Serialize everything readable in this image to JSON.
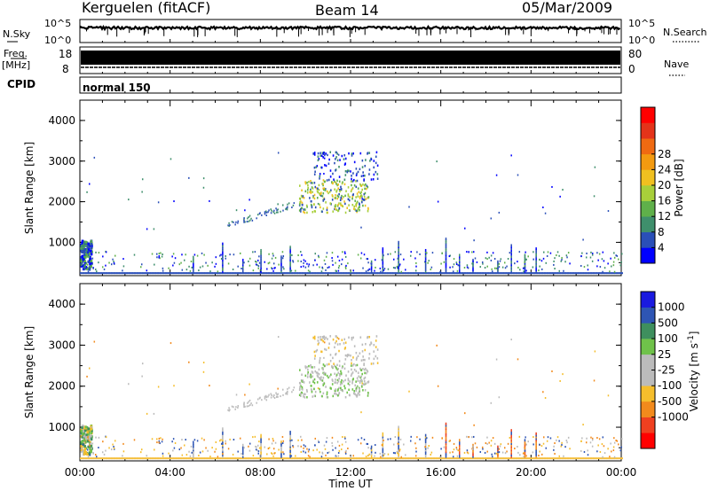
{
  "header": {
    "station": "Kerguelen (fitACF)",
    "beam": "Beam 14",
    "date": "05/Mar/2009"
  },
  "sky_panel": {
    "left_label": "N.Sky",
    "right_label": "N.Search",
    "left_ticks": [
      "10^5",
      "10^0"
    ],
    "right_ticks": [
      "10^5",
      "10^0"
    ]
  },
  "freq_panel": {
    "left_label_1": "Freq.",
    "left_label_2": "[MHz]",
    "cpid_label": "CPID",
    "right_label": "Nave",
    "left_ticks": [
      "18",
      "8"
    ],
    "right_ticks": [
      "80",
      "0"
    ]
  },
  "cpid_panel": {
    "text": "normal 150"
  },
  "colors": {
    "power_scale": [
      "#0000ff",
      "#2a4fb8",
      "#3f8f6c",
      "#5fb04a",
      "#a8cf3a",
      "#f0c020",
      "#f39a10",
      "#ef6a12",
      "#e4331a",
      "#ff0000"
    ],
    "velocity_scale": [
      "#ff0000",
      "#ef4020",
      "#f28a1c",
      "#f5be2c",
      "#bbbbbb",
      "#bbbbbb",
      "#6fc24a",
      "#3e8f5e",
      "#2e55b4",
      "#1a1ae0"
    ]
  },
  "chart_data": [
    {
      "type": "heatmap",
      "name": "power",
      "ylabel": "Slant Range [km]",
      "ylim": [
        180,
        4500
      ],
      "yticks": [
        "1000",
        "2000",
        "3000",
        "4000"
      ],
      "xlim": [
        0,
        24
      ],
      "colorbar": {
        "label": "Power [dB]",
        "range": [
          0,
          32
        ],
        "ticks": [
          "4",
          "8",
          "12",
          "16",
          "20",
          "24",
          "28"
        ]
      },
      "regions": [
        {
          "t": [
            0.0,
            0.5
          ],
          "r": [
            300,
            1000
          ],
          "level": "strong"
        },
        {
          "t": [
            9.7,
            12.8
          ],
          "r": [
            1700,
            2500
          ],
          "level": "medium"
        },
        {
          "t": [
            10.3,
            13.2
          ],
          "r": [
            2500,
            3200
          ],
          "level": "weak"
        },
        {
          "t": [
            0.0,
            24.0
          ],
          "r": [
            200,
            250
          ],
          "level": "weak"
        },
        {
          "t": [
            6.5,
            9.5
          ],
          "r": [
            1300,
            1900
          ],
          "level": "weak"
        }
      ]
    },
    {
      "type": "heatmap",
      "name": "velocity",
      "ylabel": "Slant Range [km]",
      "xlabel": "Time UT",
      "ylim": [
        180,
        4500
      ],
      "yticks": [
        "1000",
        "2000",
        "3000",
        "4000"
      ],
      "xlim": [
        0,
        24
      ],
      "xticks": [
        "00:00",
        "04:00",
        "08:00",
        "12:00",
        "16:00",
        "20:00",
        "00:00"
      ],
      "colorbar": {
        "label": "Velocity [m s^-1]",
        "range": [
          -1200,
          1200
        ],
        "ticks": [
          "1000",
          "500",
          "100",
          "25",
          "-25",
          "-100",
          "-500",
          "-1000"
        ]
      },
      "regions": [
        {
          "t": [
            0.0,
            0.5
          ],
          "r": [
            300,
            1000
          ],
          "level": "mixed"
        },
        {
          "t": [
            9.7,
            12.8
          ],
          "r": [
            1700,
            2500
          ],
          "level": "near-zero"
        },
        {
          "t": [
            10.3,
            13.2
          ],
          "r": [
            2500,
            3200
          ],
          "level": "near-zero"
        },
        {
          "t": [
            16.5,
            20.5
          ],
          "r": [
            300,
            1000
          ],
          "level": "away"
        }
      ]
    }
  ]
}
